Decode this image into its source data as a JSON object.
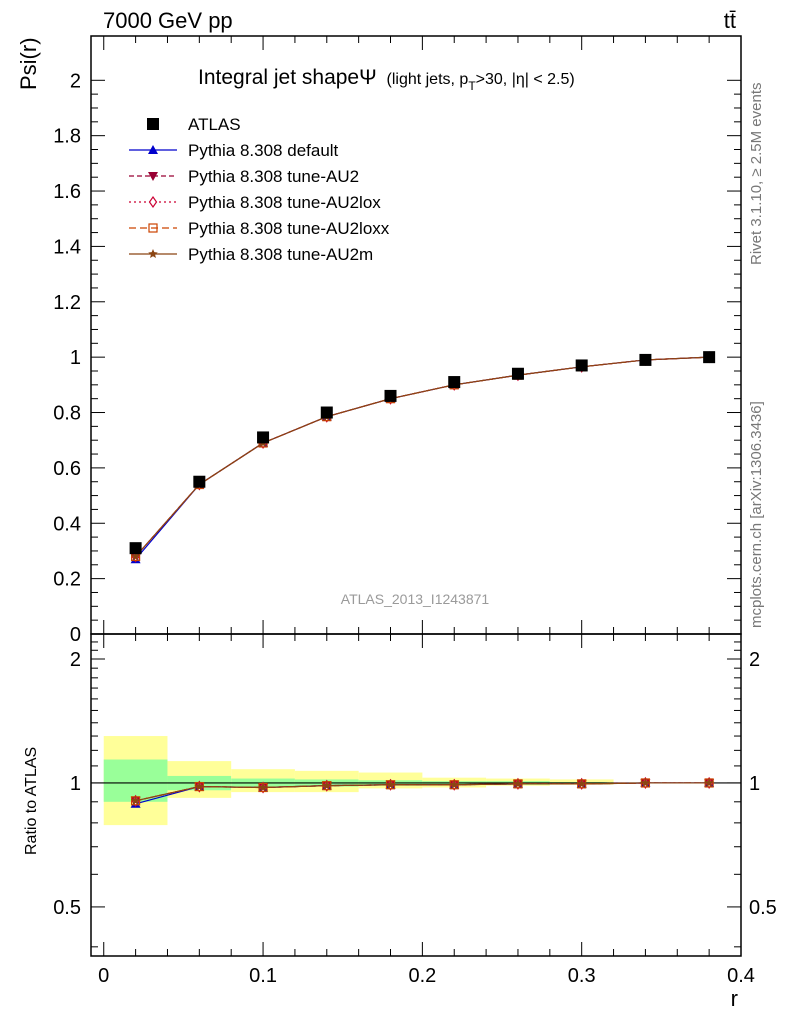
{
  "header": {
    "energy_label": "7000 GeV pp",
    "process_label": "tt̄"
  },
  "side_labels": {
    "rivet": "Rivet 3.1.10, ≥ 2.5M events",
    "mcplots": "mcplots.cern.ch [arXiv:1306.3436]"
  },
  "colors": {
    "atlas": "#000000",
    "default": "#0000cc",
    "au2": "#990033",
    "au2lox": "#cc0033",
    "au2loxx": "#cc4400",
    "au2m": "#8b4513",
    "band_inner": "#99ff99",
    "band_outer": "#ffff99"
  },
  "chart_data": [
    {
      "type": "line",
      "title_main": "Integral jet shape",
      "title_symbol": "Ψ",
      "title_sub": "(light jets, p",
      "title_sub_T": "T",
      "title_sub_rest": ">30, |η| < 2.5)",
      "watermark": "ATLAS_2013_I1243871",
      "ylabel": "Psi(r)",
      "xlim": [
        -0.008,
        0.4
      ],
      "ylim": [
        0,
        2.16
      ],
      "yticks": [
        0,
        0.2,
        0.4,
        0.6,
        0.8,
        1,
        1.2,
        1.4,
        1.6,
        1.8,
        2
      ],
      "ytick_labels": [
        "0",
        "0.2",
        "0.4",
        "0.6",
        "0.8",
        "1",
        "1.2",
        "1.4",
        "1.6",
        "1.8",
        "2"
      ],
      "x": [
        0.02,
        0.06,
        0.1,
        0.14,
        0.18,
        0.22,
        0.26,
        0.3,
        0.34,
        0.38
      ],
      "data": {
        "name": "ATLAS",
        "values": [
          0.31,
          0.55,
          0.71,
          0.8,
          0.86,
          0.91,
          0.94,
          0.97,
          0.99,
          1.0
        ]
      },
      "series": [
        {
          "name": "Pythia 8.308 default",
          "values": [
            0.27,
            0.54,
            0.69,
            0.785,
            0.85,
            0.9,
            0.935,
            0.965,
            0.99,
            1.0
          ]
        },
        {
          "name": "Pythia 8.308 tune-AU2",
          "values": [
            0.28,
            0.54,
            0.69,
            0.785,
            0.85,
            0.9,
            0.935,
            0.965,
            0.99,
            1.0
          ]
        },
        {
          "name": "Pythia 8.308 tune-AU2lox",
          "values": [
            0.28,
            0.54,
            0.69,
            0.785,
            0.85,
            0.9,
            0.935,
            0.965,
            0.99,
            1.0
          ]
        },
        {
          "name": "Pythia 8.308 tune-AU2loxx",
          "values": [
            0.28,
            0.54,
            0.69,
            0.785,
            0.85,
            0.9,
            0.935,
            0.965,
            0.99,
            1.0
          ]
        },
        {
          "name": "Pythia 8.308 tune-AU2m",
          "values": [
            0.28,
            0.54,
            0.69,
            0.785,
            0.85,
            0.9,
            0.935,
            0.965,
            0.99,
            1.0
          ]
        }
      ],
      "legend_position": "top-left"
    },
    {
      "type": "line",
      "ylabel": "Ratio to ATLAS",
      "xlabel": "r",
      "xlim": [
        -0.008,
        0.4
      ],
      "ylim": [
        0.38,
        2.3
      ],
      "ytick_labels": [
        "0.5",
        "1",
        "2"
      ],
      "yticks": [
        0.5,
        1,
        2
      ],
      "xtick_labels": [
        "0",
        "0.1",
        "0.2",
        "0.3",
        "0.4"
      ],
      "xticks": [
        0,
        0.1,
        0.2,
        0.3,
        0.4
      ],
      "x": [
        0.02,
        0.06,
        0.1,
        0.14,
        0.18,
        0.22,
        0.26,
        0.3,
        0.34,
        0.38
      ],
      "bands": {
        "bin_edges": [
          0.0,
          0.04,
          0.08,
          0.12,
          0.16,
          0.2,
          0.24,
          0.28,
          0.32,
          0.36,
          0.4
        ],
        "inner_low": [
          0.9,
          0.96,
          0.975,
          0.98,
          0.985,
          0.99,
          0.99,
          0.995,
          1.0,
          1.0
        ],
        "inner_high": [
          1.14,
          1.04,
          1.025,
          1.02,
          1.015,
          1.01,
          1.01,
          1.005,
          1.0,
          1.0
        ],
        "outer_low": [
          0.79,
          0.92,
          0.95,
          0.95,
          0.97,
          0.975,
          0.985,
          0.99,
          1.0,
          1.0
        ],
        "outer_high": [
          1.3,
          1.13,
          1.08,
          1.07,
          1.06,
          1.03,
          1.025,
          1.02,
          1.0,
          1.0
        ]
      },
      "series": [
        {
          "name": "Pythia 8.308 default",
          "values": [
            0.89,
            0.98,
            0.975,
            0.985,
            0.99,
            0.99,
            0.995,
            0.995,
            1.0,
            1.0
          ]
        },
        {
          "name": "Pythia 8.308 tune-AU2",
          "values": [
            0.905,
            0.98,
            0.975,
            0.985,
            0.99,
            0.99,
            0.995,
            0.995,
            1.0,
            1.0
          ]
        },
        {
          "name": "Pythia 8.308 tune-AU2lox",
          "values": [
            0.905,
            0.98,
            0.975,
            0.985,
            0.99,
            0.99,
            0.995,
            0.995,
            1.0,
            1.0
          ]
        },
        {
          "name": "Pythia 8.308 tune-AU2loxx",
          "values": [
            0.905,
            0.98,
            0.975,
            0.985,
            0.99,
            0.99,
            0.995,
            0.995,
            1.0,
            1.0
          ]
        },
        {
          "name": "Pythia 8.308 tune-AU2m",
          "values": [
            0.905,
            0.98,
            0.975,
            0.985,
            0.99,
            0.99,
            0.995,
            0.995,
            1.0,
            1.0
          ]
        }
      ]
    }
  ]
}
